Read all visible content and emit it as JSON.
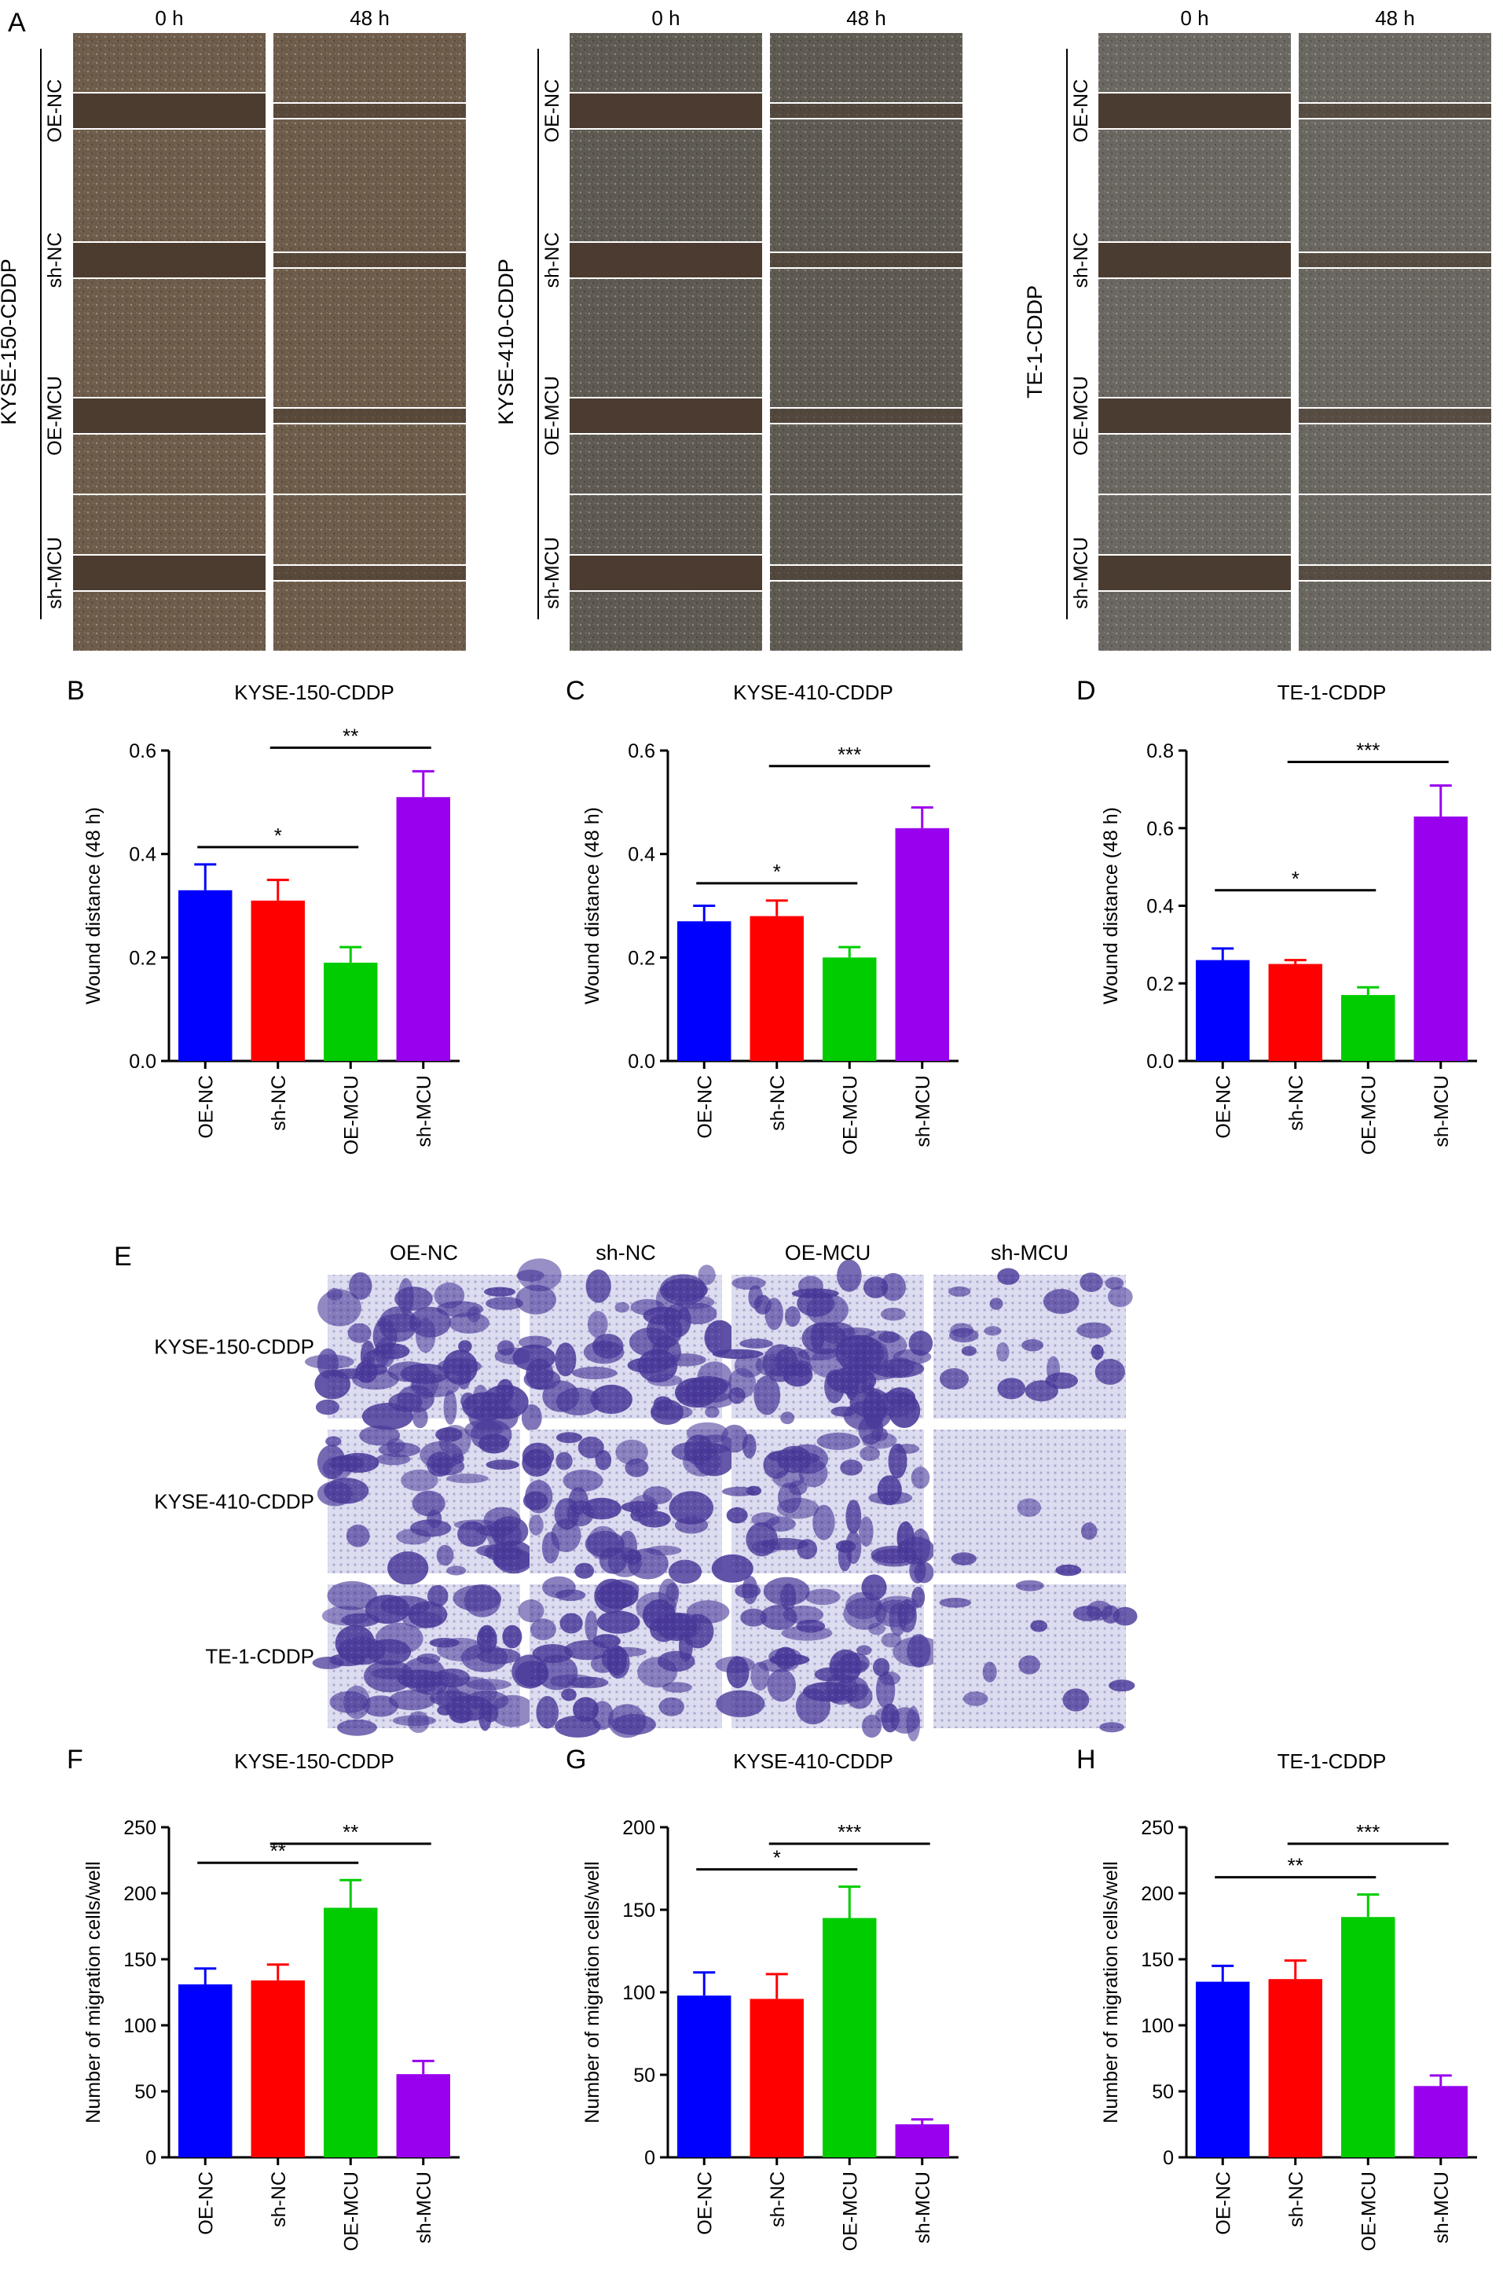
{
  "panelA": {
    "letter": "A",
    "time_labels": [
      "0 h",
      "48 h"
    ],
    "row_labels": [
      "OE-NC",
      "sh-NC",
      "OE-MCU",
      "sh-MCU"
    ],
    "blocks": [
      {
        "cell_line": "KYSE-150-CDDP",
        "tone": "#6e5c4a"
      },
      {
        "cell_line": "KYSE-410-CDDP",
        "tone": "#5e5a52"
      },
      {
        "cell_line": "TE-1-CDDP",
        "tone": "#6a6660"
      }
    ],
    "wound_fill": "#4a3a2e",
    "border_line": "#ffffff"
  },
  "panelE": {
    "letter": "E",
    "col_labels": [
      "OE-NC",
      "sh-NC",
      "OE-MCU",
      "sh-MCU"
    ],
    "row_labels": [
      "KYSE-150-CDDP",
      "KYSE-410-CDDP",
      "TE-1-CDDP"
    ],
    "stain_color": "#4a3a9a",
    "background_color": "#dcdcf0",
    "coverage": [
      [
        0.72,
        0.68,
        0.8,
        0.3
      ],
      [
        0.6,
        0.58,
        0.66,
        0.06
      ],
      [
        0.7,
        0.65,
        0.72,
        0.18
      ]
    ]
  },
  "colors": {
    "OE-NC": "#0000ff",
    "sh-NC": "#ff0000",
    "OE-MCU": "#00cc00",
    "sh-MCU": "#9900ee"
  },
  "chart_data": [
    {
      "panel": "B",
      "type": "bar",
      "title": "KYSE-150-CDDP",
      "ylabel": "Wound distance (48 h)",
      "categories": [
        "OE-NC",
        "sh-NC",
        "OE-MCU",
        "sh-MCU"
      ],
      "values": [
        0.33,
        0.31,
        0.19,
        0.51
      ],
      "errors": [
        0.05,
        0.04,
        0.03,
        0.05
      ],
      "ylim": [
        0,
        0.6
      ],
      "yticks": [
        "0.0",
        "0.2",
        "0.4",
        "0.6"
      ],
      "significance": [
        {
          "from": 0,
          "to": 2,
          "label": "*"
        },
        {
          "from": 1,
          "to": 3,
          "label": "**"
        }
      ]
    },
    {
      "panel": "C",
      "type": "bar",
      "title": "KYSE-410-CDDP",
      "ylabel": "Wound distance (48 h)",
      "categories": [
        "OE-NC",
        "sh-NC",
        "OE-MCU",
        "sh-MCU"
      ],
      "values": [
        0.27,
        0.28,
        0.2,
        0.45
      ],
      "errors": [
        0.03,
        0.03,
        0.02,
        0.04
      ],
      "ylim": [
        0,
        0.6
      ],
      "yticks": [
        "0.0",
        "0.2",
        "0.4",
        "0.6"
      ],
      "significance": [
        {
          "from": 0,
          "to": 2,
          "label": "*"
        },
        {
          "from": 1,
          "to": 3,
          "label": "***"
        }
      ]
    },
    {
      "panel": "D",
      "type": "bar",
      "title": "TE-1-CDDP",
      "ylabel": "Wound distance (48 h)",
      "categories": [
        "OE-NC",
        "sh-NC",
        "OE-MCU",
        "sh-MCU"
      ],
      "values": [
        0.26,
        0.25,
        0.17,
        0.63
      ],
      "errors": [
        0.03,
        0.01,
        0.02,
        0.08
      ],
      "ylim": [
        0,
        0.8
      ],
      "yticks": [
        "0.0",
        "0.2",
        "0.4",
        "0.6",
        "0.8"
      ],
      "significance": [
        {
          "from": 0,
          "to": 2,
          "label": "*"
        },
        {
          "from": 1,
          "to": 3,
          "label": "***"
        }
      ]
    },
    {
      "panel": "F",
      "type": "bar",
      "title": "KYSE-150-CDDP",
      "ylabel": "Number of migration cells/well",
      "categories": [
        "OE-NC",
        "sh-NC",
        "OE-MCU",
        "sh-MCU"
      ],
      "values": [
        131,
        134,
        189,
        63
      ],
      "errors": [
        12,
        12,
        21,
        10
      ],
      "ylim": [
        0,
        250
      ],
      "yticks": [
        "0",
        "50",
        "100",
        "150",
        "200",
        "250"
      ],
      "significance": [
        {
          "from": 0,
          "to": 2,
          "label": "**"
        },
        {
          "from": 1,
          "to": 3,
          "label": "**"
        }
      ]
    },
    {
      "panel": "G",
      "type": "bar",
      "title": "KYSE-410-CDDP",
      "ylabel": "Number of migration cells/well",
      "categories": [
        "OE-NC",
        "sh-NC",
        "OE-MCU",
        "sh-MCU"
      ],
      "values": [
        98,
        96,
        145,
        20
      ],
      "errors": [
        14,
        15,
        19,
        3
      ],
      "ylim": [
        0,
        200
      ],
      "yticks": [
        "0",
        "50",
        "100",
        "150",
        "200"
      ],
      "significance": [
        {
          "from": 0,
          "to": 2,
          "label": "*"
        },
        {
          "from": 1,
          "to": 3,
          "label": "***"
        }
      ]
    },
    {
      "panel": "H",
      "type": "bar",
      "title": "TE-1-CDDP",
      "ylabel": "Number of migration cells/well",
      "categories": [
        "OE-NC",
        "sh-NC",
        "OE-MCU",
        "sh-MCU"
      ],
      "values": [
        133,
        135,
        182,
        54
      ],
      "errors": [
        12,
        14,
        17,
        8
      ],
      "ylim": [
        0,
        250
      ],
      "yticks": [
        "0",
        "50",
        "100",
        "150",
        "200",
        "250"
      ],
      "significance": [
        {
          "from": 0,
          "to": 2,
          "label": "**"
        },
        {
          "from": 1,
          "to": 3,
          "label": "***"
        }
      ]
    }
  ]
}
